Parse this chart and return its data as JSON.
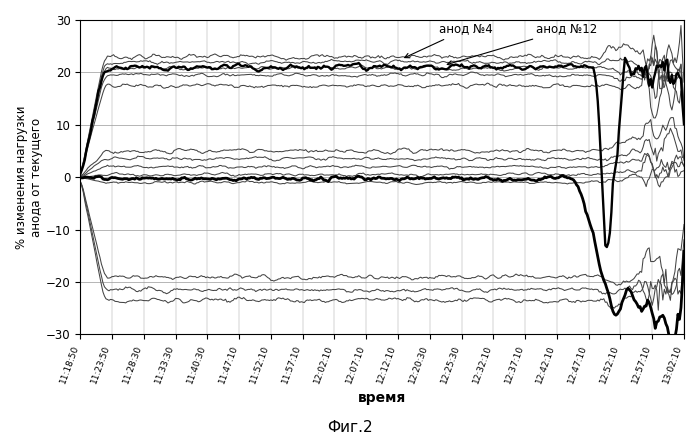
{
  "ylabel": "% изменения нагрузки\nанода от текущего",
  "xlabel": "время",
  "caption": "Фиг.2",
  "annotation1": "анод №4",
  "annotation2": "анод №12",
  "ylim": [
    -30,
    30
  ],
  "yticks": [
    -30,
    -20,
    -10,
    0,
    10,
    20,
    30
  ],
  "xtick_labels": [
    "11:18:50",
    "11:23:50",
    "11:28:30",
    "11:33:30",
    "11:40:30",
    "11:47:10",
    "11:52:10",
    "11:57:10",
    "12:02:10",
    "12:07:10",
    "12:12:10",
    "12:20:30",
    "12:25:30",
    "12:32:10",
    "12:37:10",
    "12:42:10",
    "12:47:10",
    "12:52:10",
    "12:57:10",
    "13:02:10"
  ],
  "n_points": 400,
  "background_color": "#ffffff",
  "grid_color": "#999999",
  "line_color_thin": "#444444",
  "line_color_thick": "#000000",
  "figsize": [
    6.99,
    4.37
  ],
  "dpi": 100
}
